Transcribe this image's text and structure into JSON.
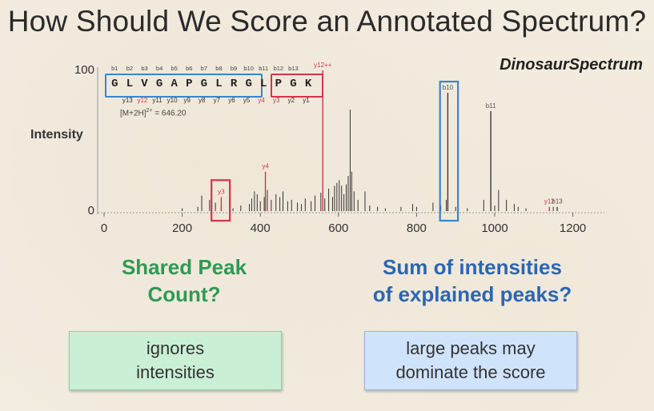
{
  "slide": {
    "title": "How Should We Score an Annotated Spectrum?",
    "brand": "DinosaurSpectrum",
    "intensity_label": "Intensity",
    "mh_label": "[M+2H]",
    "mh_charge": "2+",
    "mh_value": " = 646.20",
    "sequence": [
      "G",
      "L",
      "V",
      "G",
      "A",
      "P",
      "G",
      "L",
      "R",
      "G",
      "L",
      "P",
      "G",
      "K"
    ],
    "b_ions": [
      "b1",
      "b2",
      "b3",
      "b4",
      "b5",
      "b6",
      "b7",
      "b8",
      "b9",
      "b10",
      "b11",
      "b12",
      "b13"
    ],
    "y_ions": [
      {
        "label": "y13",
        "red": false
      },
      {
        "label": "y12",
        "red": true
      },
      {
        "label": "y11",
        "red": false
      },
      {
        "label": "y10",
        "red": false
      },
      {
        "label": "y9",
        "red": false
      },
      {
        "label": "y8",
        "red": false
      },
      {
        "label": "y7",
        "red": false
      },
      {
        "label": "y6",
        "red": false
      },
      {
        "label": "y5",
        "red": false
      },
      {
        "label": "y4",
        "red": true
      },
      {
        "label": "y3",
        "red": true
      },
      {
        "label": "y2",
        "red": false
      },
      {
        "label": "y1",
        "red": false
      }
    ],
    "left_heading_line1": "Shared Peak",
    "left_heading_line2": "Count?",
    "right_heading_line1": "Sum of intensities",
    "right_heading_line2": "of explained peaks?",
    "left_card_line1": "ignores",
    "left_card_line2": "intensities",
    "right_card_line1": "large peaks may",
    "right_card_line2": "dominate the score",
    "colors": {
      "green": "#2f9a55",
      "blue": "#2c66b2",
      "red_annot": "#d3344b",
      "blue_annot": "#3b85c9"
    }
  },
  "chart_data": {
    "type": "bar",
    "xlim": [
      0,
      1250
    ],
    "ylim": [
      0,
      100
    ],
    "x_ticks": [
      0,
      200,
      400,
      600,
      800,
      1000,
      1200
    ],
    "y_ticks": [
      0,
      100
    ],
    "peaks_black": [
      [
        200,
        2
      ],
      [
        240,
        3
      ],
      [
        250,
        11
      ],
      [
        270,
        8
      ],
      [
        285,
        6
      ],
      [
        300,
        3
      ],
      [
        330,
        2
      ],
      [
        350,
        4
      ],
      [
        372,
        5
      ],
      [
        378,
        9
      ],
      [
        385,
        14
      ],
      [
        392,
        12
      ],
      [
        400,
        7
      ],
      [
        410,
        10
      ],
      [
        418,
        15
      ],
      [
        428,
        8
      ],
      [
        440,
        12
      ],
      [
        450,
        10
      ],
      [
        458,
        14
      ],
      [
        470,
        7
      ],
      [
        480,
        8
      ],
      [
        495,
        6
      ],
      [
        505,
        5
      ],
      [
        515,
        9
      ],
      [
        530,
        7
      ],
      [
        540,
        11
      ],
      [
        555,
        13
      ],
      [
        565,
        9
      ],
      [
        575,
        16
      ],
      [
        585,
        10
      ],
      [
        590,
        18
      ],
      [
        596,
        20
      ],
      [
        602,
        22
      ],
      [
        608,
        18
      ],
      [
        614,
        12
      ],
      [
        620,
        19
      ],
      [
        625,
        25
      ],
      [
        630,
        72
      ],
      [
        634,
        28
      ],
      [
        640,
        14
      ],
      [
        650,
        8
      ],
      [
        668,
        14
      ],
      [
        680,
        4
      ],
      [
        700,
        3
      ],
      [
        720,
        2
      ],
      [
        760,
        3
      ],
      [
        790,
        5
      ],
      [
        800,
        3
      ],
      [
        842,
        6
      ],
      [
        862,
        4
      ],
      [
        876,
        8
      ],
      [
        880,
        84
      ],
      [
        900,
        3
      ],
      [
        930,
        2
      ],
      [
        972,
        8
      ],
      [
        990,
        71
      ],
      [
        1000,
        4
      ],
      [
        1010,
        15
      ],
      [
        1030,
        8
      ],
      [
        1050,
        5
      ],
      [
        1060,
        3
      ],
      [
        1080,
        2
      ],
      [
        1150,
        3
      ]
    ],
    "peaks_red": [
      {
        "x": 300,
        "y": 10,
        "label": "y3"
      },
      {
        "x": 413,
        "y": 28,
        "label": "y4"
      },
      {
        "x": 560,
        "y": 100,
        "label": "y12++"
      },
      {
        "x": 1140,
        "y": 3,
        "label": "y12"
      }
    ],
    "peaks_labeled_black": [
      {
        "x": 880,
        "y": 84,
        "label": "b10"
      },
      {
        "x": 990,
        "y": 71,
        "label": "b11"
      },
      {
        "x": 1160,
        "y": 3,
        "label": "b13"
      }
    ],
    "highlight_boxes": [
      {
        "x0": 275,
        "x1": 322,
        "color": "red"
      },
      {
        "x0": 860,
        "x1": 906,
        "color": "blue"
      }
    ]
  }
}
